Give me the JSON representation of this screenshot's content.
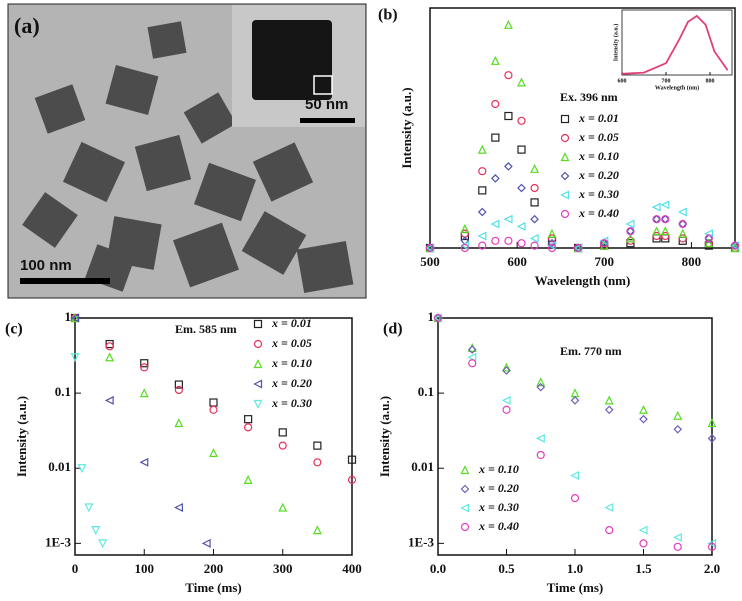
{
  "panel_a": {
    "label": "(a)",
    "scale_main": "100 nm",
    "scale_inset": "50 nm"
  },
  "chart_data": [
    {
      "type": "scatter",
      "label": "(b)",
      "x_label": "Wavelength (nm)",
      "y_label": "Intensity (a.u.)",
      "annotation": "Ex. 396 nm",
      "xlim": [
        500,
        850
      ],
      "xticks": [
        500,
        600,
        700,
        800
      ],
      "ylim": [
        0,
        1
      ],
      "x": [
        500,
        540,
        560,
        575,
        590,
        605,
        620,
        640,
        670,
        700,
        730,
        760,
        770,
        790,
        820,
        850
      ],
      "series": [
        {
          "name": "x = 0.01",
          "color": "#222222",
          "marker": "square",
          "values": [
            0,
            0.05,
            0.24,
            0.46,
            0.55,
            0.41,
            0.19,
            0.03,
            0,
            0.01,
            0.02,
            0.04,
            0.04,
            0.03,
            0.01,
            0
          ]
        },
        {
          "name": "x = 0.05",
          "color": "#e8305a",
          "marker": "circle",
          "values": [
            0,
            0.06,
            0.32,
            0.6,
            0.72,
            0.53,
            0.25,
            0.04,
            0,
            0.01,
            0.03,
            0.05,
            0.05,
            0.04,
            0.02,
            0
          ]
        },
        {
          "name": "x = 0.10",
          "color": "#55dd22",
          "marker": "triangle",
          "values": [
            0,
            0.08,
            0.41,
            0.78,
            0.93,
            0.69,
            0.33,
            0.06,
            0,
            0.01,
            0.04,
            0.07,
            0.07,
            0.06,
            0.02,
            0
          ]
        },
        {
          "name": "x = 0.20",
          "color": "#5050b0",
          "marker": "diamond",
          "values": [
            0,
            0.03,
            0.15,
            0.29,
            0.34,
            0.25,
            0.12,
            0.02,
            0,
            0.02,
            0.07,
            0.12,
            0.12,
            0.1,
            0.04,
            0.01
          ]
        },
        {
          "name": "x = 0.30",
          "color": "#50e0e8",
          "marker": "tri-left",
          "values": [
            0,
            0.01,
            0.05,
            0.1,
            0.12,
            0.09,
            0.04,
            0.01,
            0,
            0.03,
            0.1,
            0.17,
            0.18,
            0.15,
            0.06,
            0.01
          ]
        },
        {
          "name": "x = 0.40",
          "color": "#e040c0",
          "marker": "circle",
          "values": [
            0,
            0,
            0.01,
            0.03,
            0.03,
            0.02,
            0.01,
            0,
            0,
            0.02,
            0.07,
            0.12,
            0.12,
            0.1,
            0.04,
            0.01
          ]
        }
      ]
    },
    {
      "type": "line",
      "x_label": "Wavelength (nm)",
      "y_label": "Intensity (a.u.)",
      "xlim": [
        600,
        850
      ],
      "xticks": [
        600,
        700,
        800
      ],
      "ylim": [
        0,
        1.1
      ],
      "color": "#e0407a",
      "x": [
        600,
        650,
        700,
        730,
        750,
        770,
        790,
        810,
        840
      ],
      "values": [
        0.02,
        0.04,
        0.2,
        0.6,
        0.9,
        1,
        0.85,
        0.4,
        0.08
      ]
    },
    {
      "type": "scatter",
      "label": "(c)",
      "x_label": "Time (ms)",
      "y_label": "Intensity (a.u.)",
      "annotation": "Em. 585 nm",
      "log_y": true,
      "xlim": [
        0,
        400
      ],
      "xticks": [
        0,
        100,
        200,
        300,
        400
      ],
      "ylim": [
        0.0007,
        1
      ],
      "yticks": [
        {
          "value": 0.001,
          "label": "1E-3"
        },
        0.01,
        0.1,
        1
      ],
      "series": [
        {
          "name": "x = 0.01",
          "color": "#222222",
          "marker": "square",
          "x": [
            0,
            50,
            100,
            150,
            200,
            250,
            300,
            350,
            400
          ],
          "values": [
            1,
            0.45,
            0.25,
            0.13,
            0.075,
            0.045,
            0.03,
            0.02,
            0.013
          ]
        },
        {
          "name": "x = 0.05",
          "color": "#e8305a",
          "marker": "circle",
          "x": [
            0,
            50,
            100,
            150,
            200,
            250,
            300,
            350,
            400
          ],
          "values": [
            1,
            0.42,
            0.22,
            0.11,
            0.06,
            0.035,
            0.02,
            0.012,
            0.007
          ]
        },
        {
          "name": "x = 0.10",
          "color": "#55dd22",
          "marker": "triangle",
          "x": [
            0,
            50,
            100,
            150,
            200,
            250,
            300,
            350
          ],
          "values": [
            1,
            0.3,
            0.1,
            0.04,
            0.016,
            0.007,
            0.003,
            0.0015
          ]
        },
        {
          "name": "x = 0.20",
          "color": "#5050b0",
          "marker": "tri-left",
          "x": [
            0,
            50,
            100,
            150,
            190
          ],
          "values": [
            1,
            0.08,
            0.012,
            0.003,
            0.001
          ]
        },
        {
          "name": "x = 0.30",
          "color": "#60e8e0",
          "marker": "tri-down",
          "x": [
            0,
            10,
            20,
            30,
            40
          ],
          "values": [
            0.3,
            0.01,
            0.003,
            0.0015,
            0.001
          ]
        }
      ]
    },
    {
      "type": "scatter",
      "label": "(d)",
      "x_label": "Time (ms)",
      "y_label": "Intensity (a.u.)",
      "annotation": "Em. 770 nm",
      "log_y": true,
      "xlim": [
        0,
        2
      ],
      "xticks": [
        {
          "value": 0,
          "label": "0.0"
        },
        0.5,
        {
          "value": 1,
          "label": "1.0"
        },
        1.5,
        {
          "value": 2,
          "label": "2.0"
        }
      ],
      "ylim": [
        0.0007,
        1
      ],
      "yticks": [
        {
          "value": 0.001,
          "label": "1E-3"
        },
        0.01,
        0.1,
        1
      ],
      "x": [
        0,
        0.25,
        0.5,
        0.75,
        1,
        1.25,
        1.5,
        1.75,
        2
      ],
      "series": [
        {
          "name": "x = 0.10",
          "color": "#55dd22",
          "marker": "triangle",
          "values": [
            1,
            0.4,
            0.22,
            0.14,
            0.1,
            0.08,
            0.06,
            0.05,
            0.04
          ]
        },
        {
          "name": "x = 0.20",
          "color": "#7060b8",
          "marker": "diamond",
          "values": [
            1,
            0.38,
            0.2,
            0.12,
            0.08,
            0.06,
            0.045,
            0.033,
            0.025
          ]
        },
        {
          "name": "x = 0.30",
          "color": "#60e8e0",
          "marker": "tri-left",
          "values": [
            1,
            0.3,
            0.08,
            0.025,
            0.008,
            0.003,
            0.0015,
            0.0012,
            0.001
          ]
        },
        {
          "name": "x = 0.40",
          "color": "#e040c0",
          "marker": "circle",
          "values": [
            1,
            0.25,
            0.06,
            0.015,
            0.004,
            0.0015,
            0.001,
            0.0009,
            0.0009
          ]
        }
      ]
    }
  ]
}
